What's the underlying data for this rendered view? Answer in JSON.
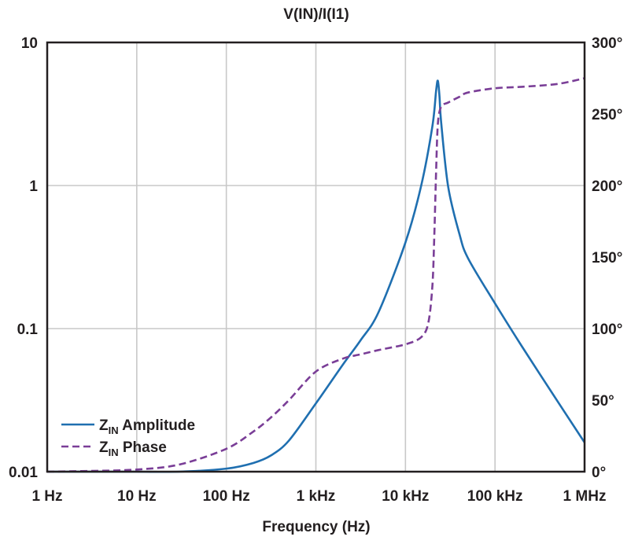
{
  "chart_data": {
    "type": "line",
    "title": "V(IN)/I(I1)",
    "xlabel": "Frequency (Hz)",
    "x_scale": "log",
    "xlim": [
      1,
      1000000
    ],
    "ylim_left": [
      0.01,
      10
    ],
    "y_left_scale": "log",
    "ylim_right": [
      0,
      300
    ],
    "grid": true,
    "legend_position": "bottom-left",
    "x_tick_labels": [
      "1 Hz",
      "10 Hz",
      "100 Hz",
      "1 kHz",
      "10 kHz",
      "100 kHz",
      "1 MHz"
    ],
    "x_ticks": [
      1,
      10,
      100,
      1000,
      10000,
      100000,
      1000000
    ],
    "y_left_tick_labels": [
      "10",
      "1",
      "0.1",
      "0.01"
    ],
    "y_left_ticks": [
      10,
      1,
      0.1,
      0.01
    ],
    "y_right_tick_labels": [
      "300°",
      "250°",
      "200°",
      "150°",
      "100°",
      "50°",
      "0°"
    ],
    "y_right_ticks": [
      300,
      250,
      200,
      150,
      100,
      50,
      0
    ],
    "series": [
      {
        "name": "Z",
        "name_sub": "IN",
        "name_suffix": " Amplitude",
        "axis": "left",
        "color": "#1f6fb0",
        "dash": "solid",
        "x": [
          1,
          3,
          10,
          30,
          100,
          200,
          316,
          500,
          1000,
          2000,
          3160,
          5000,
          10000,
          15000,
          20000,
          22000,
          23000,
          24000,
          25000,
          30000,
          40000,
          50000,
          100000,
          200000,
          500000,
          1000000
        ],
        "y": [
          0.01,
          0.01,
          0.01,
          0.01,
          0.0105,
          0.0115,
          0.013,
          0.0165,
          0.03,
          0.056,
          0.083,
          0.13,
          0.4,
          1.0,
          2.6,
          4.6,
          5.4,
          4.2,
          2.8,
          0.98,
          0.46,
          0.31,
          0.15,
          0.075,
          0.031,
          0.016
        ]
      },
      {
        "name": "Z",
        "name_sub": "IN",
        "name_suffix": " Phase",
        "axis": "right",
        "color": "#7a3e97",
        "dash": "dashed",
        "x": [
          1,
          3,
          10,
          30,
          100,
          200,
          316,
          500,
          1000,
          2000,
          3160,
          5000,
          10000,
          15000,
          18000,
          20000,
          21000,
          22000,
          23000,
          25000,
          30000,
          40000,
          50000,
          100000,
          200000,
          500000,
          1000000
        ],
        "y": [
          0,
          0.5,
          1.5,
          5,
          16,
          28,
          38,
          50,
          70,
          79,
          82,
          85,
          89,
          94,
          104,
          130,
          165,
          210,
          243,
          255,
          258,
          262,
          265,
          268,
          269,
          271,
          275
        ]
      }
    ]
  }
}
